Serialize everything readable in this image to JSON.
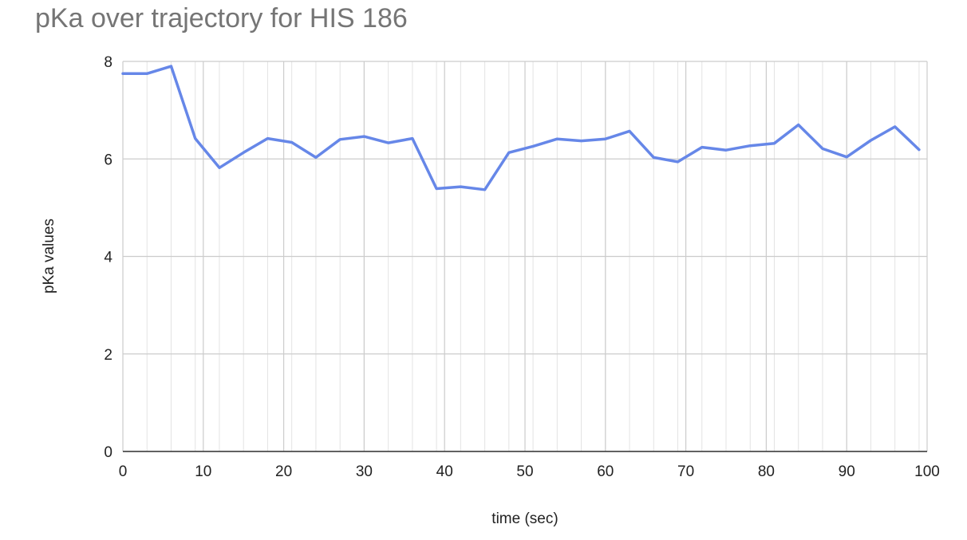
{
  "chart_data": {
    "type": "line",
    "title": "pKa over trajectory for HIS 186",
    "xlabel": "time (sec)",
    "ylabel": "pKa values",
    "xlim": [
      0,
      100
    ],
    "ylim": [
      0,
      8
    ],
    "x_ticks": [
      0,
      10,
      20,
      30,
      40,
      50,
      60,
      70,
      80,
      90,
      100
    ],
    "y_ticks": [
      0,
      2,
      4,
      6,
      8
    ],
    "x_tick_labels": [
      "0",
      "10",
      "20",
      "30",
      "40",
      "50",
      "60",
      "70",
      "80",
      "90",
      "100"
    ],
    "y_tick_labels": [
      "0",
      "2",
      "4",
      "6",
      "8"
    ],
    "x_minor_step": 3,
    "grid": true,
    "legend": "none",
    "series": [
      {
        "color": "#6687e8",
        "x": [
          0,
          3,
          6,
          9,
          12,
          15,
          18,
          21,
          24,
          27,
          30,
          33,
          36,
          39,
          42,
          45,
          48,
          51,
          54,
          57,
          60,
          63,
          66,
          69,
          72,
          75,
          78,
          81,
          84,
          87,
          90,
          93,
          96,
          99
        ],
        "y": [
          7.75,
          7.75,
          7.9,
          6.42,
          5.82,
          6.13,
          6.42,
          6.34,
          6.03,
          6.4,
          6.46,
          6.33,
          6.42,
          5.39,
          5.43,
          5.37,
          6.13,
          6.26,
          6.41,
          6.37,
          6.41,
          6.57,
          6.03,
          5.94,
          6.24,
          6.18,
          6.27,
          6.32,
          6.7,
          6.21,
          6.04,
          6.38,
          6.66,
          6.19
        ]
      }
    ]
  }
}
